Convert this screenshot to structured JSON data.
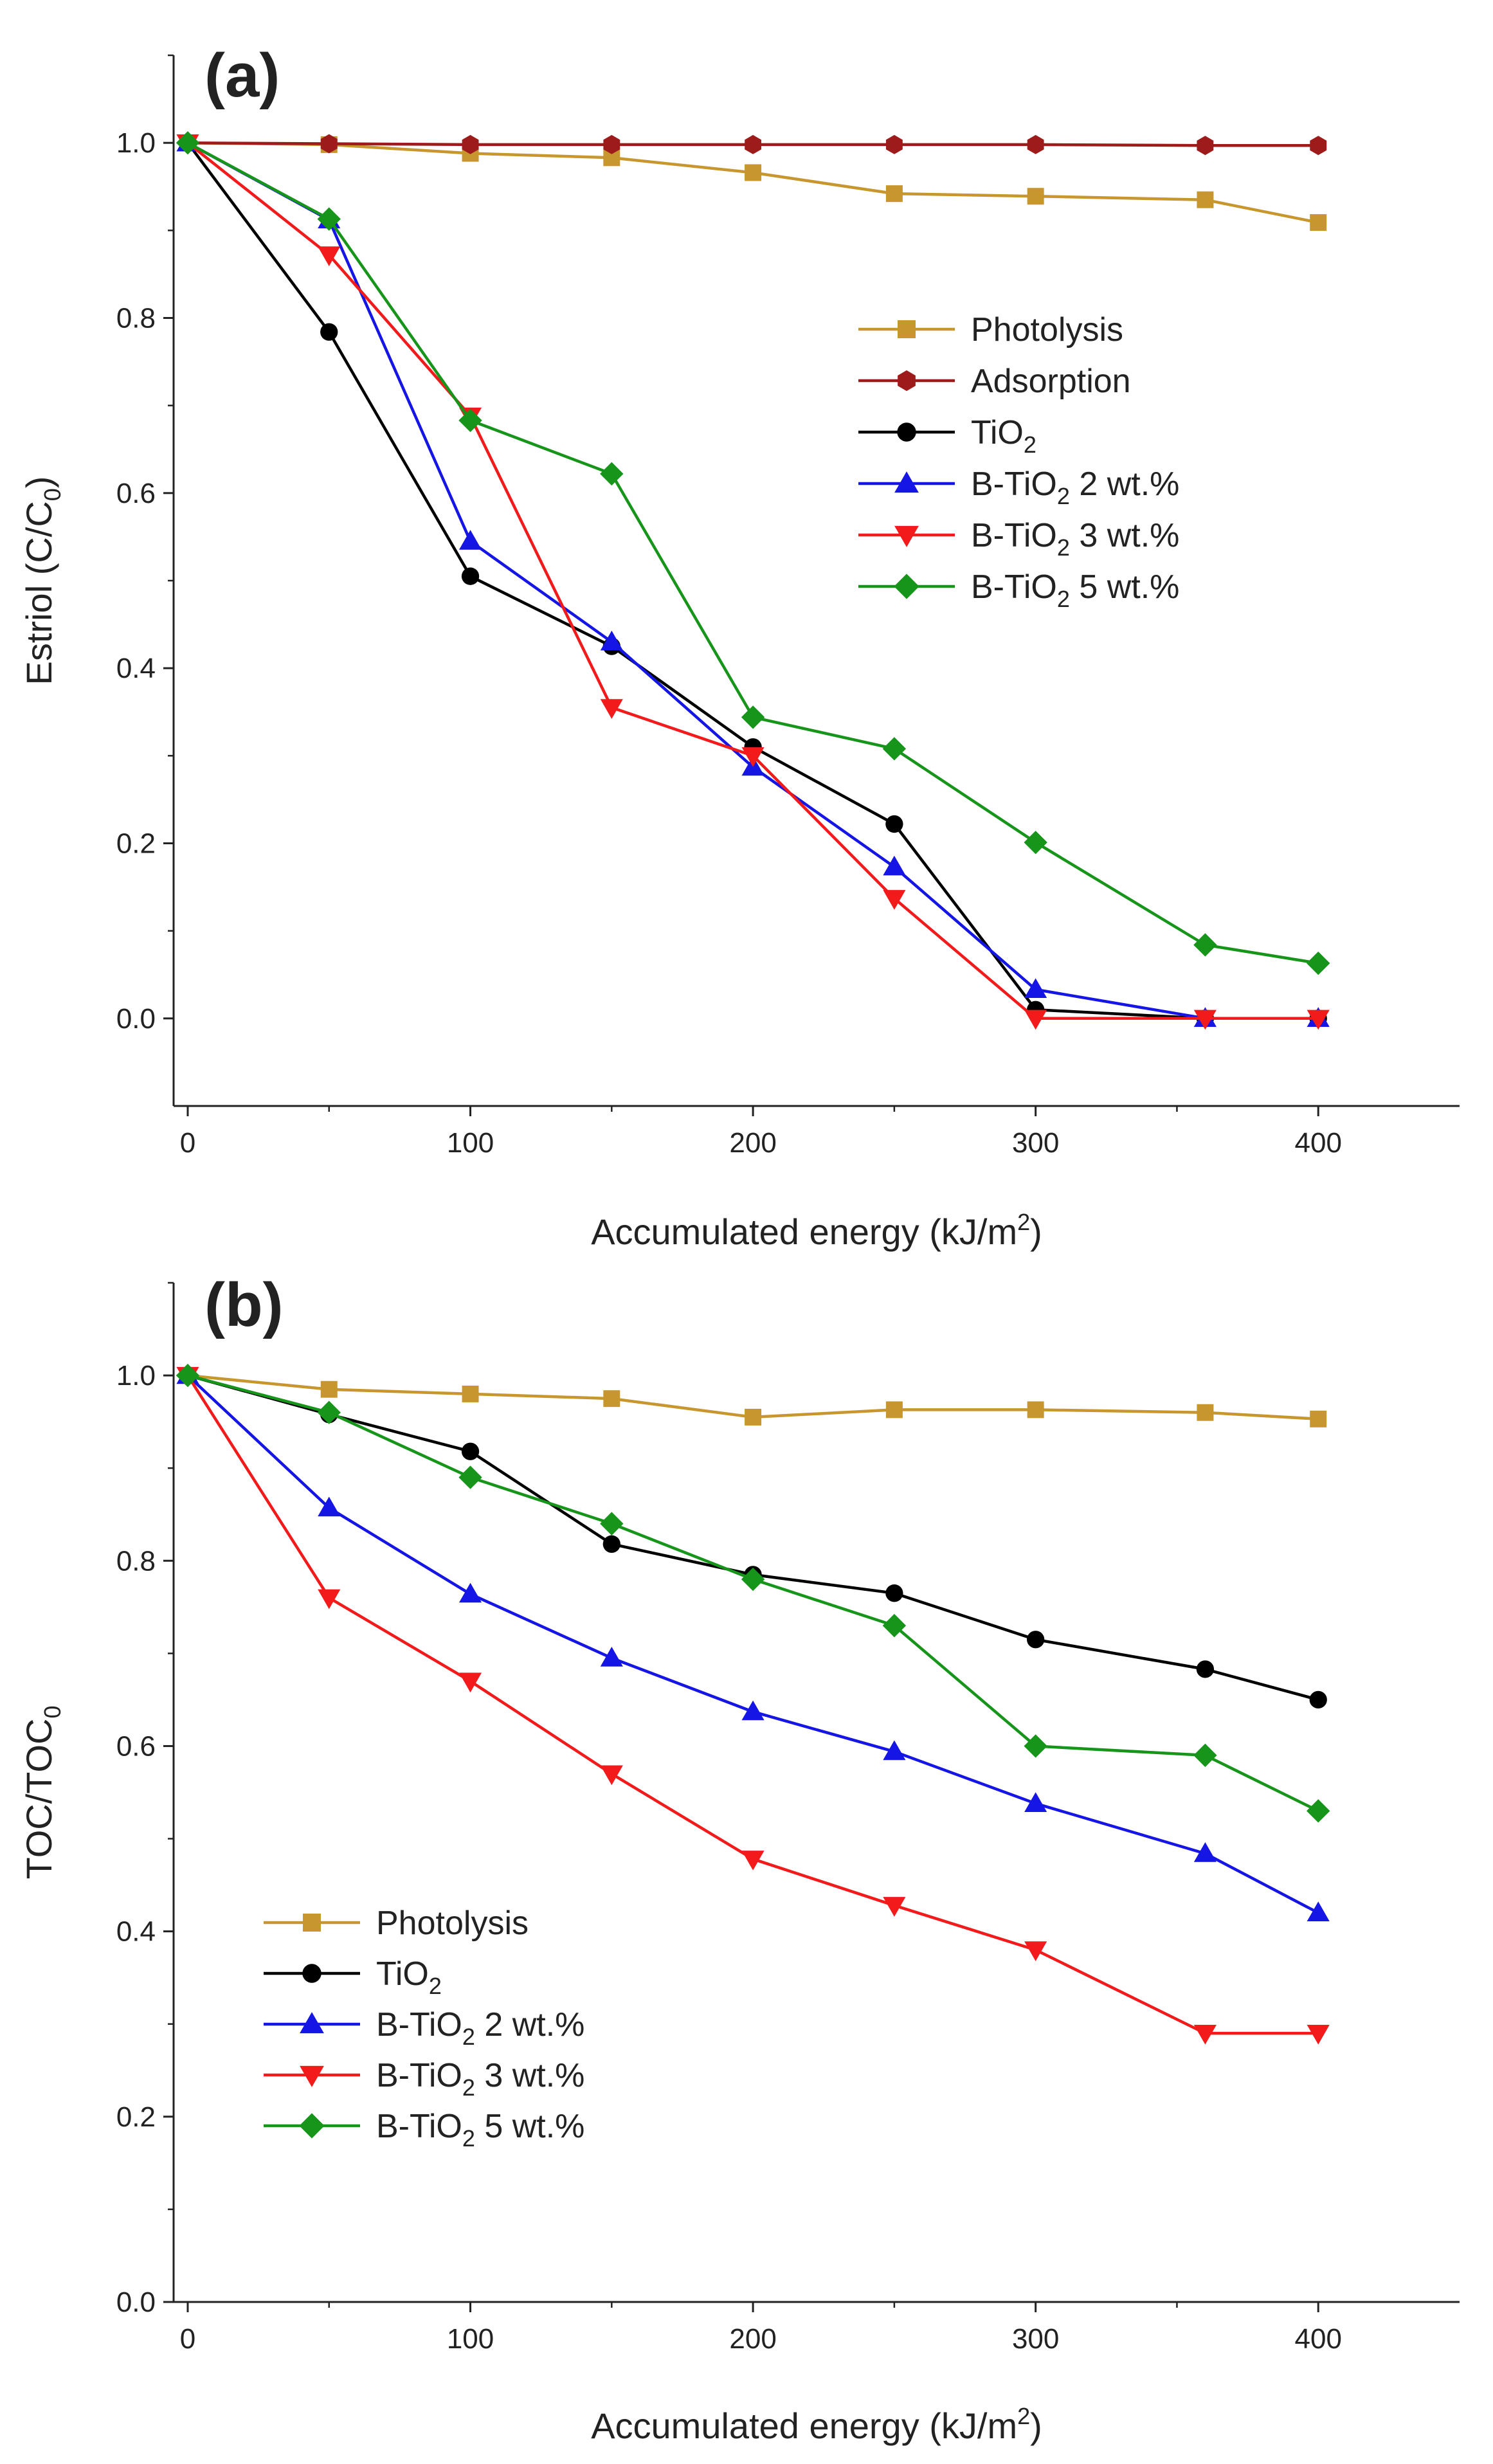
{
  "chart_data": [
    {
      "type": "line",
      "panel_label": "(a)",
      "xlabel": "Accumulated energy (kJ/m",
      "xlabel_sup": "2",
      "xlabel_end": ")",
      "ylabel": "Estriol (C/C",
      "ylabel_sub": "0",
      "ylabel_end": ")",
      "xlim": [
        -5,
        450
      ],
      "ylim": [
        -0.1,
        1.1
      ],
      "xticks": [
        0,
        100,
        200,
        300,
        400
      ],
      "xtick_labels": [
        "0",
        "100",
        "200",
        "300",
        "400"
      ],
      "yticks": [
        0.0,
        0.2,
        0.4,
        0.6,
        0.8,
        1.0
      ],
      "ytick_labels": [
        "0.0",
        "0.2",
        "0.4",
        "0.6",
        "0.8",
        "1.0"
      ],
      "legend_position": "right",
      "series": [
        {
          "name": "Photolysis",
          "name_main": "Photolysis",
          "name_sub": "",
          "name_rest": "",
          "color": "#C8962E",
          "marker": "square",
          "x": [
            0,
            50,
            100,
            150,
            200,
            250,
            300,
            360,
            400
          ],
          "y": [
            1.0,
            0.998,
            0.988,
            0.983,
            0.966,
            0.942,
            0.939,
            0.935,
            0.909
          ]
        },
        {
          "name": "Adsorption",
          "name_main": "Adsorption",
          "name_sub": "",
          "name_rest": "",
          "color": "#9E1B1B",
          "marker": "hexagon",
          "x": [
            0,
            50,
            100,
            150,
            200,
            250,
            300,
            360,
            400
          ],
          "y": [
            1.0,
            0.999,
            0.998,
            0.998,
            0.998,
            0.998,
            0.998,
            0.997,
            0.997
          ]
        },
        {
          "name": "TiO2",
          "name_main": "TiO",
          "name_sub": "2",
          "name_rest": "",
          "color": "#000000",
          "marker": "circle",
          "x": [
            0,
            50,
            100,
            150,
            200,
            250,
            300,
            360,
            400
          ],
          "y": [
            1.0,
            0.784,
            0.505,
            0.425,
            0.31,
            0.222,
            0.01,
            0.0,
            0.0
          ]
        },
        {
          "name": "B-TiO2 2 wt.%",
          "name_main": "B-TiO",
          "name_sub": "2",
          "name_rest": " 2 wt.%",
          "color": "#1515E6",
          "marker": "triangle-up",
          "x": [
            0,
            50,
            100,
            150,
            200,
            250,
            300,
            360,
            400
          ],
          "y": [
            1.0,
            0.912,
            0.545,
            0.43,
            0.287,
            0.173,
            0.033,
            0.0,
            0.0
          ]
        },
        {
          "name": "B-TiO2 3 wt.%",
          "name_main": "B-TiO",
          "name_sub": "2",
          "name_rest": " 3 wt.%",
          "color": "#F21A1A",
          "marker": "triangle-down",
          "x": [
            0,
            50,
            100,
            150,
            200,
            250,
            300,
            360,
            400
          ],
          "y": [
            1.0,
            0.872,
            0.688,
            0.355,
            0.3,
            0.137,
            0.0,
            0.0,
            0.0
          ]
        },
        {
          "name": "B-TiO2 5 wt.%",
          "name_main": "B-TiO",
          "name_sub": "2",
          "name_rest": " 5 wt.%",
          "color": "#17951A",
          "marker": "diamond",
          "x": [
            0,
            50,
            100,
            150,
            200,
            250,
            300,
            360,
            400
          ],
          "y": [
            1.0,
            0.913,
            0.683,
            0.622,
            0.344,
            0.308,
            0.201,
            0.084,
            0.063
          ]
        }
      ]
    },
    {
      "type": "line",
      "panel_label": "(b)",
      "xlabel": "Accumulated energy (kJ/m",
      "xlabel_sup": "2",
      "xlabel_end": ")",
      "ylabel": "TOC/TOC",
      "ylabel_sub": "0",
      "ylabel_end": "",
      "xlim": [
        -5,
        450
      ],
      "ylim": [
        0.0,
        1.1
      ],
      "xticks": [
        0,
        100,
        200,
        300,
        400
      ],
      "xtick_labels": [
        "0",
        "100",
        "200",
        "300",
        "400"
      ],
      "yticks": [
        0.0,
        0.2,
        0.4,
        0.6,
        0.8,
        1.0
      ],
      "ytick_labels": [
        "0.0",
        "0.2",
        "0.4",
        "0.6",
        "0.8",
        "1.0"
      ],
      "legend_position": "lower-left",
      "series": [
        {
          "name": "Photolysis",
          "name_main": "Photolysis",
          "name_sub": "",
          "name_rest": "",
          "color": "#C8962E",
          "marker": "square",
          "x": [
            0,
            50,
            100,
            150,
            200,
            250,
            300,
            360,
            400
          ],
          "y": [
            1.0,
            0.985,
            0.98,
            0.975,
            0.955,
            0.963,
            0.963,
            0.96,
            0.953
          ]
        },
        {
          "name": "TiO2",
          "name_main": "TiO",
          "name_sub": "2",
          "name_rest": "",
          "color": "#000000",
          "marker": "circle",
          "x": [
            0,
            50,
            100,
            150,
            200,
            250,
            300,
            360,
            400
          ],
          "y": [
            1.0,
            0.958,
            0.918,
            0.818,
            0.785,
            0.765,
            0.715,
            0.683,
            0.65
          ]
        },
        {
          "name": "B-TiO2 2 wt.%",
          "name_main": "B-TiO",
          "name_sub": "2",
          "name_rest": " 2 wt.%",
          "color": "#1515E6",
          "marker": "triangle-up",
          "x": [
            0,
            50,
            100,
            150,
            200,
            250,
            300,
            360,
            400
          ],
          "y": [
            1.0,
            0.857,
            0.764,
            0.695,
            0.637,
            0.594,
            0.538,
            0.484,
            0.42
          ]
        },
        {
          "name": "B-TiO2 3 wt.%",
          "name_main": "B-TiO",
          "name_sub": "2",
          "name_rest": " 3 wt.%",
          "color": "#F21A1A",
          "marker": "triangle-down",
          "x": [
            0,
            50,
            100,
            150,
            200,
            250,
            300,
            360,
            400
          ],
          "y": [
            1.0,
            0.76,
            0.67,
            0.57,
            0.478,
            0.428,
            0.38,
            0.29,
            0.29
          ]
        },
        {
          "name": "B-TiO2 5 wt.%",
          "name_main": "B-TiO",
          "name_sub": "2",
          "name_rest": " 5 wt.%",
          "color": "#17951A",
          "marker": "diamond",
          "x": [
            0,
            50,
            100,
            150,
            200,
            250,
            300,
            360,
            400
          ],
          "y": [
            1.0,
            0.96,
            0.89,
            0.84,
            0.78,
            0.73,
            0.6,
            0.59,
            0.53
          ]
        }
      ]
    }
  ]
}
